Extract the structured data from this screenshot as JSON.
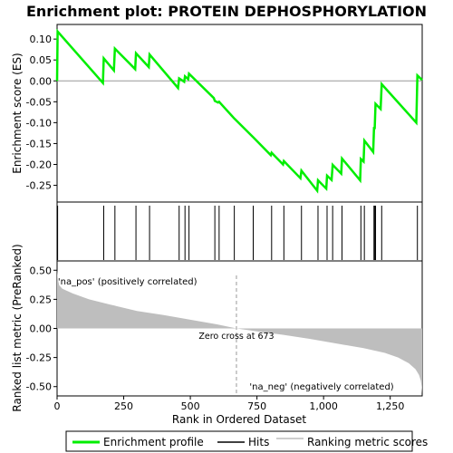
{
  "chart_data": {
    "type": "line",
    "title": "Enrichment plot: PROTEIN DEPHOSPHORYLATION",
    "top_panel": {
      "ylabel": "Enrichment score (ES)",
      "ylim": [
        -0.29,
        0.135
      ],
      "yticks": [
        0.1,
        0.05,
        0.0,
        -0.05,
        -0.1,
        -0.15,
        -0.2,
        -0.25
      ],
      "ytick_labels": [
        "0.10",
        "0.05",
        "0.00",
        "-0.05",
        "-0.10",
        "-0.15",
        "-0.20",
        "-0.25"
      ],
      "line_color": "#00ee00",
      "es_curve": [
        [
          0,
          0.0
        ],
        [
          2,
          0.118
        ],
        [
          172,
          -0.005
        ],
        [
          175,
          0.054
        ],
        [
          213,
          0.025
        ],
        [
          217,
          0.077
        ],
        [
          293,
          0.028
        ],
        [
          296,
          0.066
        ],
        [
          344,
          0.033
        ],
        [
          347,
          0.063
        ],
        [
          454,
          -0.017
        ],
        [
          458,
          0.006
        ],
        [
          477,
          -0.002
        ],
        [
          480,
          0.011
        ],
        [
          492,
          0.004
        ],
        [
          495,
          0.017
        ],
        [
          588,
          -0.041
        ],
        [
          592,
          -0.048
        ],
        [
          604,
          -0.052
        ],
        [
          608,
          -0.05
        ],
        [
          665,
          -0.09
        ],
        [
          733,
          -0.133
        ],
        [
          736,
          -0.135
        ],
        [
          802,
          -0.178
        ],
        [
          805,
          -0.172
        ],
        [
          848,
          -0.2
        ],
        [
          851,
          -0.192
        ],
        [
          913,
          -0.233
        ],
        [
          917,
          -0.215
        ],
        [
          976,
          -0.263
        ],
        [
          979,
          -0.238
        ],
        [
          1010,
          -0.258
        ],
        [
          1013,
          -0.227
        ],
        [
          1030,
          -0.237
        ],
        [
          1034,
          -0.201
        ],
        [
          1066,
          -0.222
        ],
        [
          1069,
          -0.186
        ],
        [
          1137,
          -0.238
        ],
        [
          1140,
          -0.187
        ],
        [
          1150,
          -0.193
        ],
        [
          1153,
          -0.143
        ],
        [
          1186,
          -0.17
        ],
        [
          1189,
          -0.113
        ],
        [
          1192,
          -0.113
        ],
        [
          1195,
          -0.055
        ],
        [
          1214,
          -0.067
        ],
        [
          1218,
          -0.008
        ],
        [
          1348,
          -0.1
        ],
        [
          1352,
          0.013
        ],
        [
          1370,
          0.002
        ]
      ]
    },
    "hits_panel": {
      "hit_positions": [
        2,
        175,
        217,
        296,
        347,
        458,
        480,
        495,
        592,
        608,
        665,
        736,
        805,
        851,
        917,
        979,
        1013,
        1034,
        1069,
        1140,
        1153,
        1189,
        1192,
        1195,
        1218,
        1352
      ]
    },
    "bottom_panel": {
      "ylabel": "Ranked list metric (PreRanked)",
      "xlabel": "Rank in Ordered Dataset",
      "xlim": [
        0,
        1370
      ],
      "ylim": [
        -0.58,
        0.58
      ],
      "yticks": [
        0.5,
        0.25,
        0.0,
        -0.25,
        -0.5
      ],
      "ytick_labels": [
        "0.50",
        "0.25",
        "0.00",
        "-0.25",
        "-0.50"
      ],
      "xticks": [
        0,
        250,
        500,
        750,
        1000,
        1250
      ],
      "xtick_labels": [
        "0",
        "250",
        "500",
        "750",
        "1,000",
        "1,250"
      ],
      "fill_color": "#bebebe",
      "metric_curve": [
        [
          0,
          0.5
        ],
        [
          3,
          0.42
        ],
        [
          8,
          0.37
        ],
        [
          20,
          0.34
        ],
        [
          60,
          0.3
        ],
        [
          120,
          0.25
        ],
        [
          200,
          0.205
        ],
        [
          300,
          0.15
        ],
        [
          400,
          0.115
        ],
        [
          500,
          0.075
        ],
        [
          600,
          0.035
        ],
        [
          673,
          0.0
        ],
        [
          750,
          -0.025
        ],
        [
          850,
          -0.055
        ],
        [
          950,
          -0.09
        ],
        [
          1050,
          -0.13
        ],
        [
          1150,
          -0.17
        ],
        [
          1230,
          -0.21
        ],
        [
          1280,
          -0.25
        ],
        [
          1320,
          -0.3
        ],
        [
          1345,
          -0.35
        ],
        [
          1358,
          -0.4
        ],
        [
          1365,
          -0.45
        ],
        [
          1368,
          -0.5
        ],
        [
          1370,
          -0.56
        ]
      ],
      "zero_cross": 673,
      "zero_cross_label": "Zero cross at 673",
      "pos_label": "'na_pos' (positively correlated)",
      "neg_label": "'na_neg' (negatively correlated)",
      "pos_label_color": "#cc0000",
      "neg_label_color": "#0000cc"
    },
    "color_bar": [
      {
        "from": 0,
        "to": 30,
        "color": "#e30000"
      },
      {
        "from": 30,
        "to": 120,
        "color": "#f43434"
      },
      {
        "from": 120,
        "to": 300,
        "color": "#ff5c5c"
      },
      {
        "from": 300,
        "to": 410,
        "color": "#ff7474"
      },
      {
        "from": 410,
        "to": 530,
        "color": "#ff9696"
      },
      {
        "from": 530,
        "to": 600,
        "color": "#ffbfdf"
      },
      {
        "from": 600,
        "to": 673,
        "color": "#ffd0ee"
      },
      {
        "from": 673,
        "to": 740,
        "color": "#ececff"
      },
      {
        "from": 740,
        "to": 810,
        "color": "#dcdcff"
      },
      {
        "from": 810,
        "to": 880,
        "color": "#c5c5fb"
      },
      {
        "from": 880,
        "to": 950,
        "color": "#b0b0f8"
      },
      {
        "from": 950,
        "to": 1010,
        "color": "#8f8ff5"
      },
      {
        "from": 1010,
        "to": 1070,
        "color": "#7b7bf0"
      },
      {
        "from": 1070,
        "to": 1160,
        "color": "#6565ec"
      },
      {
        "from": 1160,
        "to": 1270,
        "color": "#4b4be2"
      },
      {
        "from": 1270,
        "to": 1370,
        "color": "#2a00d2"
      }
    ],
    "legend": {
      "placement": "bottom",
      "items": [
        {
          "label": "Enrichment profile",
          "color": "#00ee00"
        },
        {
          "label": "Hits",
          "color": "#000000"
        },
        {
          "label": "Ranking metric scores",
          "color": "#bebebe"
        }
      ]
    }
  }
}
